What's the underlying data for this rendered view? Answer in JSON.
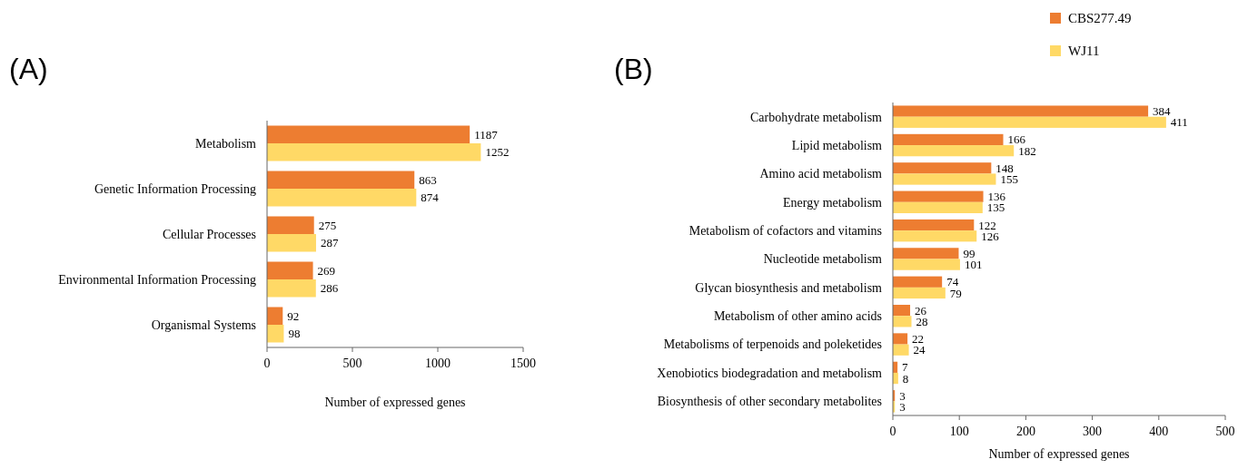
{
  "chart_data": [
    {
      "type": "bar",
      "title": "(A)",
      "orientation": "horizontal",
      "categories": [
        "Metabolism",
        "Genetic Information Processing",
        "Cellular Processes",
        "Environmental Information Processing",
        "Organismal Systems"
      ],
      "series": [
        {
          "color": "#ed7d31",
          "values": [
            1187,
            863,
            275,
            269,
            92
          ]
        },
        {
          "color": "#ffd966",
          "values": [
            1252,
            874,
            287,
            286,
            98
          ]
        }
      ],
      "xlim": [
        0,
        1500
      ],
      "xticks": [
        0,
        500,
        1000,
        1500
      ],
      "xlabel": "Number of  expressed genes",
      "data_labels": true,
      "grid": false,
      "legend": false
    },
    {
      "type": "bar",
      "title": "(B)",
      "orientation": "horizontal",
      "categories": [
        "Carbohydrate metabolism",
        "Lipid metabolism",
        "Amino acid metabolism",
        "Energy metabolism",
        "Metabolism of cofactors and vitamins",
        "Nucleotide metabolism",
        "Glycan biosynthesis and metabolism",
        "Metabolism of other amino acids",
        "Metabolisms of terpenoids and poleketides",
        "Xenobiotics biodegradation and metabolism",
        "Biosynthesis of other secondary metabolites"
      ],
      "series": [
        {
          "name": "CBS277.49",
          "color": "#ed7d31",
          "values": [
            384,
            166,
            148,
            136,
            122,
            99,
            74,
            26,
            22,
            7,
            3
          ]
        },
        {
          "name": "WJ11",
          "color": "#ffd966",
          "values": [
            411,
            182,
            155,
            135,
            126,
            101,
            79,
            28,
            24,
            8,
            3
          ]
        }
      ],
      "xlim": [
        0,
        500
      ],
      "xticks": [
        0,
        100,
        200,
        300,
        400,
        500
      ],
      "xlabel": "Number of expressed genes",
      "data_labels": true,
      "grid": false,
      "legend": "top right"
    }
  ]
}
